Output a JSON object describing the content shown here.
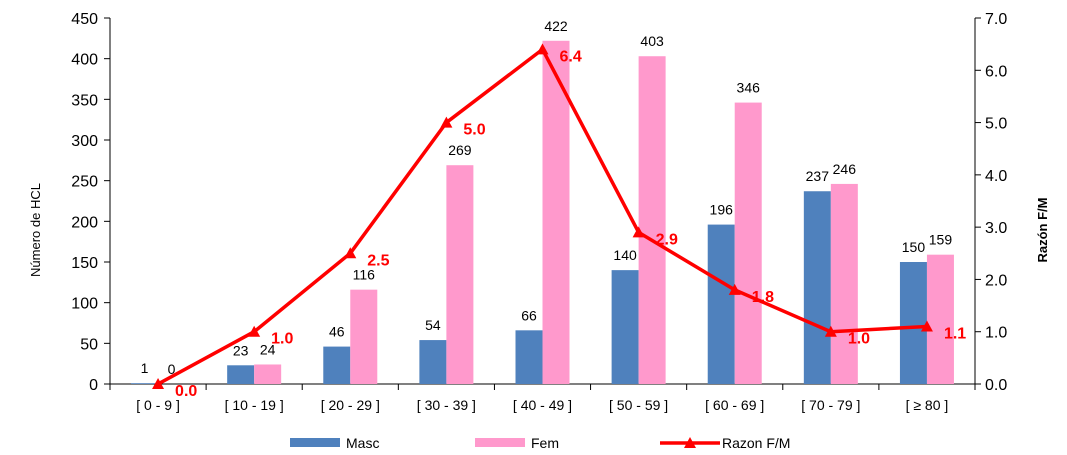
{
  "chart_data": {
    "type": "bar",
    "categories": [
      "[ 0 - 9 ]",
      "[ 10 - 19 ]",
      "[ 20 - 29 ]",
      "[ 30 - 39 ]",
      "[ 40 - 49 ]",
      "[ 50 - 59 ]",
      "[ 60 - 69 ]",
      "[ 70 - 79 ]",
      "[ ≥ 80 ]"
    ],
    "series": [
      {
        "name": "Masc",
        "type": "bar",
        "axis": "left",
        "color": "#4f81bd",
        "values": [
          1,
          23,
          46,
          54,
          66,
          140,
          196,
          237,
          150
        ],
        "labels": [
          "1",
          "23",
          "46",
          "54",
          "66",
          "140",
          "196",
          "237",
          "150"
        ]
      },
      {
        "name": "Fem",
        "type": "bar",
        "axis": "left",
        "color": "#ff99cc",
        "values": [
          0,
          24,
          116,
          269,
          422,
          403,
          346,
          246,
          159
        ],
        "labels": [
          "0",
          "24",
          "116",
          "269",
          "422",
          "403",
          "346",
          "246",
          "159"
        ]
      },
      {
        "name": "Razon F/M",
        "type": "line",
        "axis": "right",
        "color": "#ff0000",
        "marker": "triangle",
        "values": [
          0.0,
          1.0,
          2.5,
          5.0,
          6.4,
          2.9,
          1.8,
          1.0,
          1.1
        ],
        "labels": [
          "0.0",
          "1.0",
          "2.5",
          "5.0",
          "6.4",
          "2.9",
          "1.8",
          "1.0",
          "1.1"
        ]
      }
    ],
    "ylabel": "Número de HCL",
    "y2label": "Razón F/M",
    "ylim": [
      0,
      450
    ],
    "y2lim": [
      0,
      7
    ],
    "yticks": [
      "0",
      "50",
      "100",
      "150",
      "200",
      "250",
      "300",
      "350",
      "400",
      "450"
    ],
    "y2ticks": [
      "0.0",
      "1.0",
      "2.0",
      "3.0",
      "4.0",
      "5.0",
      "6.0",
      "7.0"
    ],
    "grid": false,
    "legend": "bottom"
  }
}
